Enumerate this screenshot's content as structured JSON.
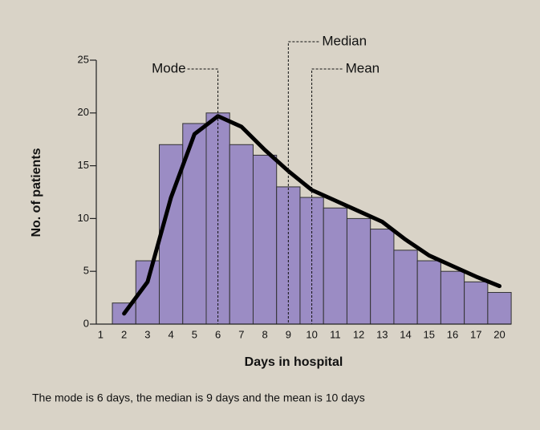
{
  "chart_data": {
    "type": "bar",
    "categories": [
      "1",
      "2",
      "3",
      "4",
      "5",
      "6",
      "7",
      "8",
      "9",
      "10",
      "11",
      "12",
      "13",
      "14",
      "15",
      "16",
      "17",
      "20"
    ],
    "values": [
      null,
      2,
      6,
      17,
      19,
      20,
      17,
      16,
      13,
      12,
      11,
      10,
      9,
      7,
      6,
      5,
      4,
      3
    ],
    "color": "#9b8cc4",
    "curve": {
      "color": "#000000",
      "values": [
        null,
        1,
        4,
        12,
        18,
        19.7,
        18.7,
        16.5,
        14.5,
        12.7,
        11.7,
        10.7,
        9.7,
        8,
        6.5,
        5.5,
        4.5,
        3.6
      ]
    },
    "ylim": [
      0,
      25
    ],
    "yticks": [
      0,
      5,
      10,
      15,
      20,
      25
    ],
    "xlabel": "Days in hospital",
    "ylabel": "No. of patients",
    "annotations": [
      {
        "text": "Mode",
        "x": "6"
      },
      {
        "text": "Median",
        "x": "9"
      },
      {
        "text": "Mean",
        "x": "10"
      }
    ],
    "caption": "The mode is 6 days, the median is 9 days and the mean is 10 days"
  }
}
